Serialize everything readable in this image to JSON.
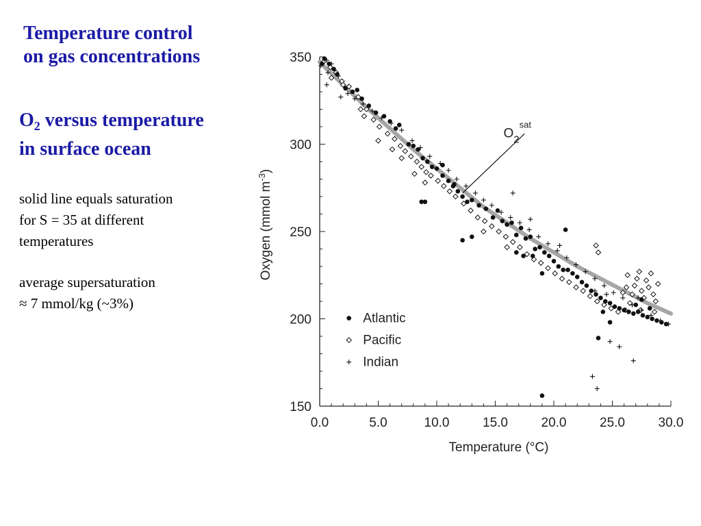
{
  "slide": {
    "title_lines": [
      "Temperature control",
      "on gas concentrations"
    ],
    "subtitle": {
      "o": "O",
      "sub": "2",
      "line1_rest": " versus temperature",
      "line2": "in surface ocean"
    },
    "note1_lines": [
      "solid line equals saturation",
      "for S = 35 at different",
      "temperatures"
    ],
    "note2_lines": [
      "average supersaturation",
      "≈ 7 mmol/kg (~3%)"
    ]
  },
  "colors": {
    "title": "#1a1aa6",
    "saturation_line": "#a6a6a6",
    "markers": "#111111"
  },
  "chart_data": {
    "type": "scatter",
    "xlabel": "Temperature (°C)",
    "ylabel": "Oxygen (mmol m-3)",
    "xlim": [
      0,
      30
    ],
    "ylim": [
      150,
      350
    ],
    "xticks": [
      "0.0",
      "5.0",
      "10.0",
      "15.0",
      "20.0",
      "25.0",
      "30.0"
    ],
    "yticks": [
      "150",
      "200",
      "250",
      "300",
      "350"
    ],
    "legend_position": "bottom-left",
    "annotation": {
      "base": "O",
      "sub": "2",
      "sup": "sat"
    },
    "saturation_curve": {
      "x": [
        0,
        2,
        4,
        6,
        8,
        10,
        12,
        14,
        16,
        18,
        20,
        22,
        24,
        26,
        28,
        30
      ],
      "y": [
        347,
        334,
        321,
        309,
        297,
        286,
        275,
        264,
        255,
        246,
        238,
        230,
        223,
        216,
        209,
        203
      ]
    },
    "series": [
      {
        "name": "Atlantic",
        "marker": "filled-circle",
        "points": [
          [
            0.2,
            346
          ],
          [
            0.4,
            349
          ],
          [
            0.8,
            346
          ],
          [
            1.2,
            343
          ],
          [
            1.5,
            340
          ],
          [
            2.2,
            332
          ],
          [
            2.8,
            330
          ],
          [
            3.2,
            331
          ],
          [
            3.6,
            326
          ],
          [
            4.2,
            322
          ],
          [
            4.8,
            318
          ],
          [
            5.5,
            316
          ],
          [
            6.0,
            313
          ],
          [
            6.8,
            311
          ],
          [
            7.6,
            300
          ],
          [
            8.0,
            299
          ],
          [
            8.4,
            297
          ],
          [
            8.8,
            292
          ],
          [
            9.2,
            290
          ],
          [
            9.6,
            287
          ],
          [
            10.0,
            286
          ],
          [
            10.5,
            282
          ],
          [
            11.0,
            279
          ],
          [
            11.4,
            276
          ],
          [
            11.8,
            273
          ],
          [
            12.2,
            270
          ],
          [
            12.6,
            267
          ],
          [
            13.0,
            268
          ],
          [
            13.6,
            265
          ],
          [
            14.2,
            263
          ],
          [
            14.8,
            258
          ],
          [
            15.2,
            262
          ],
          [
            15.6,
            256
          ],
          [
            16.0,
            254
          ],
          [
            16.4,
            255
          ],
          [
            16.8,
            248
          ],
          [
            17.2,
            252
          ],
          [
            17.6,
            246
          ],
          [
            18.0,
            247
          ],
          [
            18.4,
            240
          ],
          [
            18.8,
            241
          ],
          [
            19.2,
            238
          ],
          [
            19.6,
            236
          ],
          [
            20.0,
            233
          ],
          [
            20.4,
            230
          ],
          [
            20.8,
            228
          ],
          [
            21.2,
            228
          ],
          [
            21.6,
            226
          ],
          [
            22.0,
            224
          ],
          [
            22.4,
            221
          ],
          [
            22.8,
            219
          ],
          [
            23.2,
            216
          ],
          [
            23.6,
            214
          ],
          [
            24.0,
            212
          ],
          [
            24.4,
            210
          ],
          [
            24.8,
            209
          ],
          [
            25.2,
            207
          ],
          [
            25.6,
            206
          ],
          [
            26.0,
            205
          ],
          [
            26.4,
            204
          ],
          [
            26.8,
            203
          ],
          [
            27.2,
            204
          ],
          [
            27.6,
            202
          ],
          [
            28.0,
            201
          ],
          [
            28.4,
            200
          ],
          [
            28.8,
            199
          ],
          [
            29.2,
            198
          ],
          [
            29.6,
            197
          ],
          [
            27.0,
            208
          ],
          [
            27.5,
            211
          ],
          [
            28.2,
            206
          ],
          [
            24.2,
            204
          ],
          [
            24.8,
            198
          ],
          [
            13.0,
            247
          ],
          [
            12.2,
            245
          ],
          [
            9.0,
            267
          ],
          [
            8.7,
            267
          ],
          [
            16.8,
            238
          ],
          [
            17.4,
            236
          ],
          [
            18.2,
            236
          ],
          [
            19.0,
            226
          ],
          [
            21.0,
            251
          ],
          [
            23.8,
            189
          ],
          [
            19.0,
            156
          ],
          [
            10.5,
            288
          ],
          [
            6.5,
            309
          ],
          [
            11.5,
            277
          ]
        ]
      },
      {
        "name": "Pacific",
        "marker": "open-diamond",
        "points": [
          [
            0.3,
            347
          ],
          [
            0.9,
            344
          ],
          [
            1.4,
            341
          ],
          [
            1.9,
            336
          ],
          [
            2.5,
            333
          ],
          [
            3.3,
            327
          ],
          [
            3.5,
            320
          ],
          [
            3.8,
            316
          ],
          [
            4.0,
            320
          ],
          [
            4.6,
            314
          ],
          [
            5.1,
            310
          ],
          [
            5.8,
            306
          ],
          [
            6.4,
            303
          ],
          [
            6.9,
            299
          ],
          [
            7.3,
            296
          ],
          [
            7.8,
            293
          ],
          [
            8.3,
            290
          ],
          [
            8.7,
            287
          ],
          [
            9.1,
            284
          ],
          [
            9.5,
            282
          ],
          [
            10.1,
            279
          ],
          [
            10.6,
            276
          ],
          [
            11.1,
            273
          ],
          [
            11.6,
            270
          ],
          [
            12.3,
            266
          ],
          [
            12.9,
            262
          ],
          [
            13.5,
            258
          ],
          [
            14.1,
            256
          ],
          [
            14.7,
            253
          ],
          [
            15.3,
            250
          ],
          [
            15.9,
            247
          ],
          [
            16.5,
            244
          ],
          [
            17.1,
            241
          ],
          [
            17.7,
            237
          ],
          [
            18.3,
            234
          ],
          [
            18.9,
            232
          ],
          [
            19.5,
            229
          ],
          [
            20.1,
            226
          ],
          [
            20.7,
            223
          ],
          [
            21.3,
            221
          ],
          [
            21.9,
            218
          ],
          [
            22.5,
            216
          ],
          [
            23.1,
            213
          ],
          [
            23.7,
            210
          ],
          [
            24.3,
            208
          ],
          [
            24.9,
            206
          ],
          [
            25.5,
            204
          ],
          [
            26.1,
            205
          ],
          [
            26.5,
            209
          ],
          [
            26.7,
            214
          ],
          [
            26.9,
            219
          ],
          [
            27.1,
            223
          ],
          [
            27.3,
            227
          ],
          [
            27.5,
            216
          ],
          [
            27.7,
            212
          ],
          [
            27.9,
            222
          ],
          [
            28.1,
            218
          ],
          [
            28.3,
            226
          ],
          [
            28.5,
            214
          ],
          [
            28.7,
            210
          ],
          [
            28.9,
            220
          ],
          [
            26.3,
            225
          ],
          [
            25.9,
            215
          ],
          [
            26.2,
            218
          ],
          [
            27.4,
            205
          ],
          [
            28.6,
            204
          ],
          [
            23.6,
            242
          ],
          [
            23.8,
            238
          ],
          [
            5.0,
            302
          ],
          [
            6.2,
            297
          ],
          [
            7.0,
            292
          ],
          [
            8.1,
            283
          ],
          [
            9.0,
            278
          ],
          [
            14.0,
            250
          ],
          [
            16.0,
            241
          ],
          [
            2.0,
            334
          ],
          [
            1.0,
            338
          ]
        ]
      },
      {
        "name": "Indian",
        "marker": "plus",
        "points": [
          [
            0.1,
            345
          ],
          [
            0.6,
            348
          ],
          [
            0.7,
            341
          ],
          [
            1.0,
            346
          ],
          [
            1.6,
            339
          ],
          [
            0.6,
            334
          ],
          [
            1.8,
            327
          ],
          [
            2.4,
            329
          ],
          [
            3.0,
            326
          ],
          [
            3.7,
            323
          ],
          [
            4.5,
            319
          ],
          [
            5.3,
            315
          ],
          [
            6.1,
            312
          ],
          [
            7.0,
            308
          ],
          [
            7.9,
            302
          ],
          [
            8.6,
            298
          ],
          [
            9.4,
            293
          ],
          [
            10.3,
            289
          ],
          [
            11.0,
            285
          ],
          [
            11.7,
            280
          ],
          [
            12.5,
            276
          ],
          [
            13.3,
            272
          ],
          [
            14.0,
            268
          ],
          [
            14.7,
            265
          ],
          [
            15.5,
            261
          ],
          [
            16.3,
            258
          ],
          [
            17.1,
            255
          ],
          [
            17.9,
            251
          ],
          [
            18.7,
            247
          ],
          [
            19.5,
            243
          ],
          [
            20.3,
            239
          ],
          [
            21.1,
            235
          ],
          [
            21.9,
            231
          ],
          [
            22.7,
            227
          ],
          [
            23.5,
            223
          ],
          [
            24.3,
            219
          ],
          [
            25.1,
            215
          ],
          [
            25.9,
            212
          ],
          [
            26.7,
            208
          ],
          [
            27.5,
            205
          ],
          [
            28.3,
            202
          ],
          [
            29.1,
            199
          ],
          [
            29.8,
            197
          ],
          [
            16.5,
            272
          ],
          [
            18.0,
            257
          ],
          [
            20.5,
            242
          ],
          [
            23.5,
            216
          ],
          [
            24.5,
            214
          ],
          [
            27.2,
            212
          ],
          [
            23.3,
            167
          ],
          [
            23.7,
            160
          ],
          [
            25.6,
            184
          ],
          [
            26.8,
            176
          ],
          [
            24.8,
            187
          ]
        ]
      }
    ]
  }
}
